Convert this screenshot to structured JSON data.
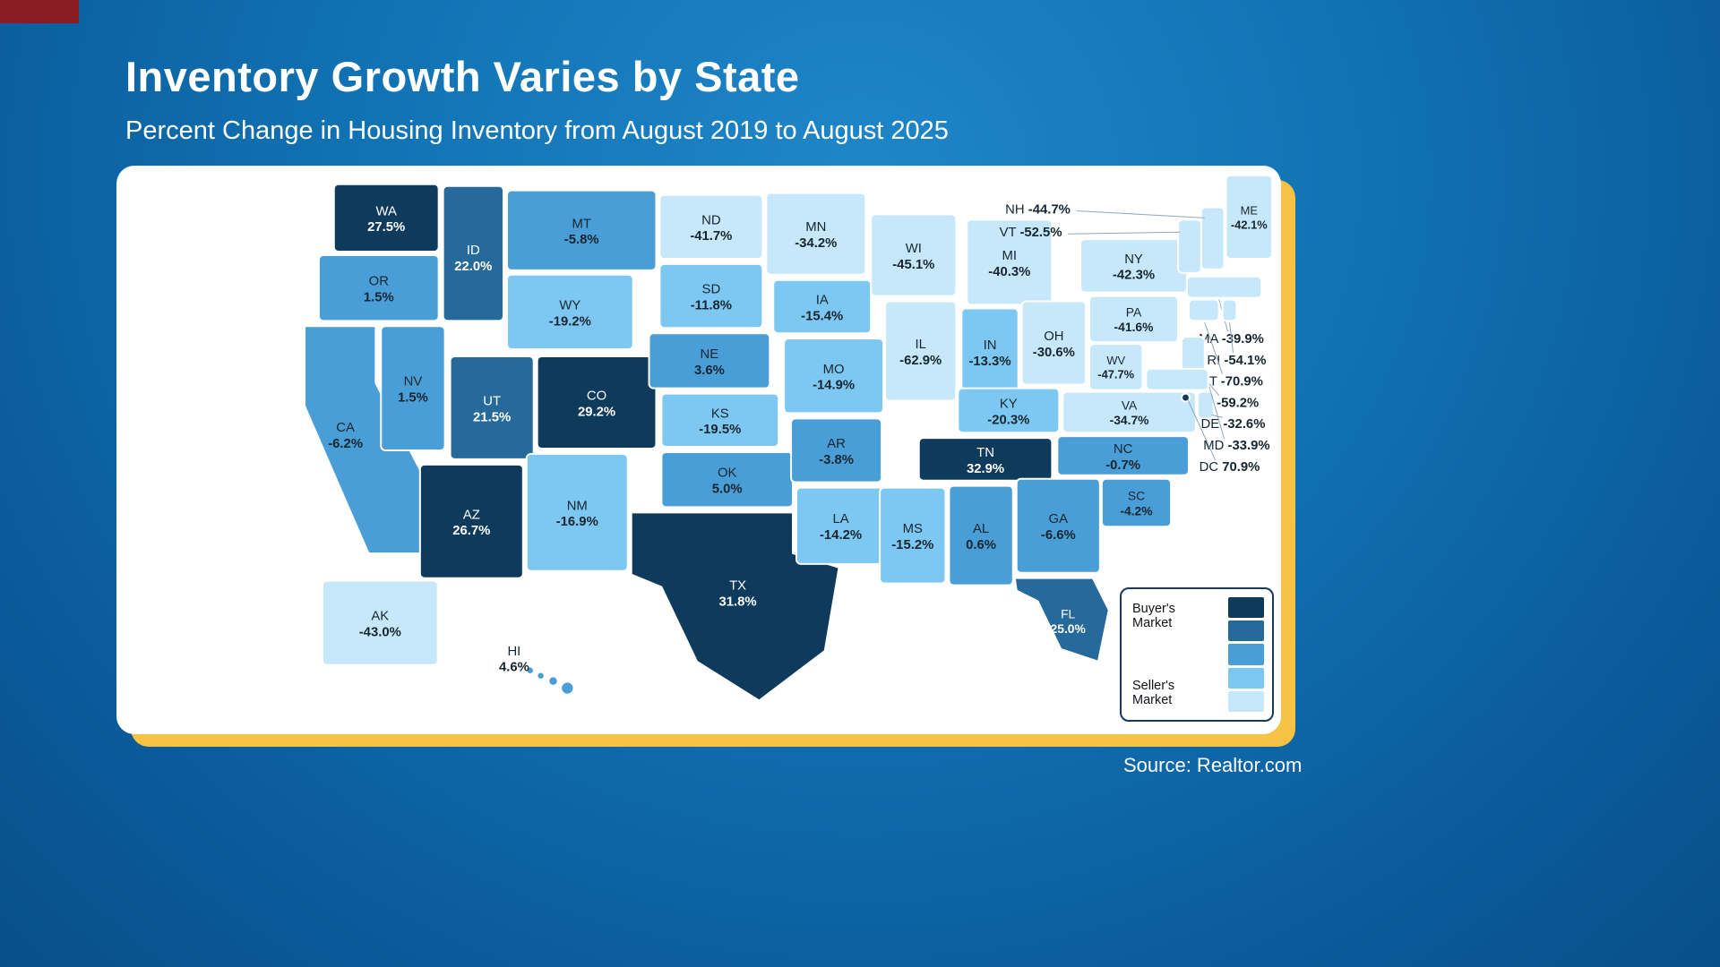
{
  "page": {
    "title": "Inventory Growth Varies by State",
    "subtitle": "Percent Change in Housing Inventory from August 2019 to August 2025",
    "source": "Source: Realtor.com"
  },
  "legend": {
    "top_label": "Buyer's Market",
    "bottom_label": "Seller's Market",
    "colors": [
      "#0e3a5c",
      "#266a9b",
      "#4a9ed8",
      "#7cc8f3",
      "#c7e8fb"
    ]
  },
  "colors": {
    "background_top": "#1e86c9",
    "background_bottom": "#084f8a",
    "card": "#ffffff",
    "accent_yellow": "#f6c344",
    "corner_red": "#8a1c24",
    "label_dark": "#16262e",
    "label_light": "#ffffff",
    "callout_line": "#8fa6b8"
  },
  "chart_data": {
    "type": "choropleth-map",
    "region": "United States",
    "title": "Inventory Growth Varies by State",
    "subtitle": "Percent Change in Housing Inventory from August 2019 to August 2025",
    "source": "Source: Realtor.com",
    "value_unit": "%",
    "legend_top": "Buyer's Market",
    "legend_bottom": "Seller's Market",
    "states": [
      {
        "abbr": "WA",
        "value": 27.5,
        "label": "27.5%"
      },
      {
        "abbr": "OR",
        "value": 1.5,
        "label": "1.5%"
      },
      {
        "abbr": "CA",
        "value": -6.2,
        "label": "-6.2%"
      },
      {
        "abbr": "ID",
        "value": 22.0,
        "label": "22.0%"
      },
      {
        "abbr": "NV",
        "value": 1.5,
        "label": "1.5%"
      },
      {
        "abbr": "MT",
        "value": -5.8,
        "label": "-5.8%"
      },
      {
        "abbr": "WY",
        "value": -19.2,
        "label": "-19.2%"
      },
      {
        "abbr": "UT",
        "value": 21.5,
        "label": "21.5%"
      },
      {
        "abbr": "AZ",
        "value": 26.7,
        "label": "26.7%"
      },
      {
        "abbr": "NM",
        "value": -16.9,
        "label": "-16.9%"
      },
      {
        "abbr": "CO",
        "value": 29.2,
        "label": "29.2%"
      },
      {
        "abbr": "ND",
        "value": -41.7,
        "label": "-41.7%"
      },
      {
        "abbr": "SD",
        "value": -11.8,
        "label": "-11.8%"
      },
      {
        "abbr": "NE",
        "value": 3.6,
        "label": "3.6%"
      },
      {
        "abbr": "KS",
        "value": -19.5,
        "label": "-19.5%"
      },
      {
        "abbr": "OK",
        "value": 5.0,
        "label": "5.0%"
      },
      {
        "abbr": "TX",
        "value": 31.8,
        "label": "31.8%"
      },
      {
        "abbr": "MN",
        "value": -34.2,
        "label": "-34.2%"
      },
      {
        "abbr": "IA",
        "value": -15.4,
        "label": "-15.4%"
      },
      {
        "abbr": "MO",
        "value": -14.9,
        "label": "-14.9%"
      },
      {
        "abbr": "AR",
        "value": -3.8,
        "label": "-3.8%"
      },
      {
        "abbr": "LA",
        "value": -14.2,
        "label": "-14.2%"
      },
      {
        "abbr": "WI",
        "value": -45.1,
        "label": "-45.1%"
      },
      {
        "abbr": "IL",
        "value": -62.9,
        "label": "-62.9%"
      },
      {
        "abbr": "MS",
        "value": -15.2,
        "label": "-15.2%"
      },
      {
        "abbr": "MI",
        "value": -40.3,
        "label": "-40.3%"
      },
      {
        "abbr": "IN",
        "value": -13.3,
        "label": "-13.3%"
      },
      {
        "abbr": "OH",
        "value": -30.6,
        "label": "-30.6%"
      },
      {
        "abbr": "KY",
        "value": -20.3,
        "label": "-20.3%"
      },
      {
        "abbr": "TN",
        "value": 32.9,
        "label": "32.9%"
      },
      {
        "abbr": "AL",
        "value": 0.6,
        "label": "0.6%"
      },
      {
        "abbr": "GA",
        "value": -6.6,
        "label": "-6.6%"
      },
      {
        "abbr": "FL",
        "value": 25.0,
        "label": "25.0%"
      },
      {
        "abbr": "SC",
        "value": -4.2,
        "label": "-4.2%"
      },
      {
        "abbr": "NC",
        "value": -0.7,
        "label": "-0.7%"
      },
      {
        "abbr": "VA",
        "value": -34.7,
        "label": "-34.7%"
      },
      {
        "abbr": "WV",
        "value": -47.7,
        "label": "-47.7%"
      },
      {
        "abbr": "PA",
        "value": -41.6,
        "label": "-41.6%"
      },
      {
        "abbr": "NY",
        "value": -42.3,
        "label": "-42.3%"
      },
      {
        "abbr": "ME",
        "value": -42.1,
        "label": "-42.1%"
      },
      {
        "abbr": "NH",
        "value": -44.7,
        "label": "-44.7%"
      },
      {
        "abbr": "VT",
        "value": -52.5,
        "label": "-52.5%"
      },
      {
        "abbr": "MA",
        "value": -39.9,
        "label": "-39.9%"
      },
      {
        "abbr": "RI",
        "value": -54.1,
        "label": "-54.1%"
      },
      {
        "abbr": "CT",
        "value": -70.9,
        "label": "-70.9%"
      },
      {
        "abbr": "NJ",
        "value": -59.2,
        "label": "-59.2%"
      },
      {
        "abbr": "DE",
        "value": -32.6,
        "label": "-32.6%"
      },
      {
        "abbr": "MD",
        "value": -33.9,
        "label": "-33.9%"
      },
      {
        "abbr": "DC",
        "value": 70.9,
        "label": "70.9%"
      },
      {
        "abbr": "AK",
        "value": -43.0,
        "label": "-43.0%"
      },
      {
        "abbr": "HI",
        "value": 4.6,
        "label": "4.6%"
      }
    ]
  }
}
